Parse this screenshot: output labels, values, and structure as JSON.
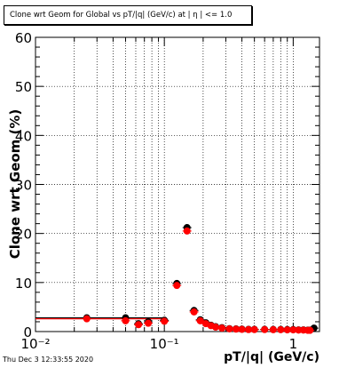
{
  "chart_data": {
    "type": "scatter",
    "title": "Clone wrt Geom for Global vs pT/|q| (GeV/c) at | η | <= 1.0",
    "xlabel": "pT/|q| (GeV/c)",
    "ylabel": "Clone wrt Geom (%)",
    "x_scale": "log",
    "xlim": [
      0.01,
      1.6
    ],
    "ylim": [
      0,
      60
    ],
    "x_ticks": [
      0.01,
      0.1,
      1
    ],
    "x_tick_labels": [
      "10⁻²",
      "10⁻¹",
      "1"
    ],
    "y_ticks": [
      0,
      10,
      20,
      30,
      40,
      50,
      60
    ],
    "grid": true,
    "timestamp": "Thu Dec  3 12:33:55 2020",
    "series": [
      {
        "color": "#000000",
        "points": [
          [
            0.025,
            2.8
          ],
          [
            0.05,
            2.8
          ],
          [
            0.063,
            1.6
          ],
          [
            0.075,
            2.0
          ],
          [
            0.1,
            2.3
          ],
          [
            0.125,
            9.8
          ],
          [
            0.15,
            21.2
          ],
          [
            0.17,
            4.3
          ],
          [
            0.19,
            2.4
          ],
          [
            0.21,
            1.8
          ],
          [
            0.23,
            1.3
          ],
          [
            0.25,
            1.0
          ],
          [
            0.28,
            0.8
          ],
          [
            0.32,
            0.6
          ],
          [
            0.36,
            0.55
          ],
          [
            0.4,
            0.5
          ],
          [
            0.45,
            0.45
          ],
          [
            0.5,
            0.45
          ],
          [
            0.6,
            0.45
          ],
          [
            0.7,
            0.42
          ],
          [
            0.8,
            0.42
          ],
          [
            0.9,
            0.4
          ],
          [
            1.0,
            0.4
          ],
          [
            1.1,
            0.35
          ],
          [
            1.2,
            0.35
          ],
          [
            1.3,
            0.3
          ],
          [
            1.35,
            0.3
          ],
          [
            1.45,
            0.7
          ]
        ]
      },
      {
        "color": "#ff0000",
        "points": [
          [
            0.025,
            2.6
          ],
          [
            0.05,
            2.2
          ],
          [
            0.063,
            1.4
          ],
          [
            0.075,
            1.7
          ],
          [
            0.1,
            2.1
          ],
          [
            0.125,
            9.4
          ],
          [
            0.15,
            20.5
          ],
          [
            0.17,
            4.0
          ],
          [
            0.19,
            2.2
          ],
          [
            0.21,
            1.6
          ],
          [
            0.23,
            1.2
          ],
          [
            0.25,
            0.9
          ],
          [
            0.28,
            0.7
          ],
          [
            0.32,
            0.55
          ],
          [
            0.36,
            0.5
          ],
          [
            0.4,
            0.45
          ],
          [
            0.45,
            0.4
          ],
          [
            0.5,
            0.4
          ],
          [
            0.6,
            0.4
          ],
          [
            0.7,
            0.38
          ],
          [
            0.8,
            0.38
          ],
          [
            0.9,
            0.35
          ],
          [
            1.0,
            0.35
          ],
          [
            1.1,
            0.3
          ],
          [
            1.2,
            0.3
          ],
          [
            1.3,
            0.25
          ],
          [
            1.35,
            0.25
          ]
        ]
      }
    ],
    "reference_segments": [
      {
        "color": "#000000",
        "x": [
          0.01,
          0.1
        ],
        "y": 2.8
      },
      {
        "color": "#ff0000",
        "x": [
          0.01,
          0.1
        ],
        "y": 2.6
      }
    ]
  }
}
